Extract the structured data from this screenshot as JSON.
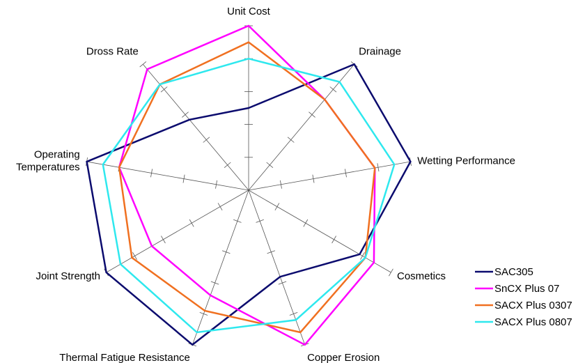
{
  "chart_data": {
    "type": "radar",
    "axes": [
      "Unit Cost",
      "Drainage",
      "Wetting Performance",
      "Cosmetics",
      "Copper Erosion",
      "Thermal Fatigue Resistance",
      "Joint Strength",
      "Operating Temperatures",
      "Dross Rate"
    ],
    "axis_label_lines": [
      [
        "Unit Cost"
      ],
      [
        "Drainage"
      ],
      [
        "Wetting Performance"
      ],
      [
        "Cosmetics"
      ],
      [
        "Copper Erosion"
      ],
      [
        "Thermal Fatigue Resistance"
      ],
      [
        "Joint Strength"
      ],
      [
        "Operating",
        "Temperatures"
      ],
      [
        "Dross Rate"
      ]
    ],
    "range": [
      0,
      5
    ],
    "ticks": 5,
    "series": [
      {
        "name": "SAC305",
        "color": "#0b0b6e",
        "values": [
          2.5,
          5.0,
          5.0,
          3.9,
          2.8,
          5.0,
          5.0,
          5.0,
          2.8
        ]
      },
      {
        "name": "SnCX Plus 07",
        "color": "#ff00ff",
        "values": [
          5.0,
          3.6,
          3.9,
          4.4,
          5.0,
          3.4,
          3.4,
          4.0,
          4.8
        ]
      },
      {
        "name": "SACX Plus 0307",
        "color": "#f07020",
        "values": [
          4.5,
          3.6,
          3.9,
          4.1,
          4.6,
          3.9,
          4.1,
          4.0,
          4.2
        ]
      },
      {
        "name": "SACX Plus 0807",
        "color": "#2ee8ee",
        "values": [
          4.0,
          4.3,
          4.5,
          4.1,
          4.2,
          4.6,
          4.5,
          4.5,
          4.2
        ]
      }
    ],
    "legend_position": "bottom-right"
  }
}
